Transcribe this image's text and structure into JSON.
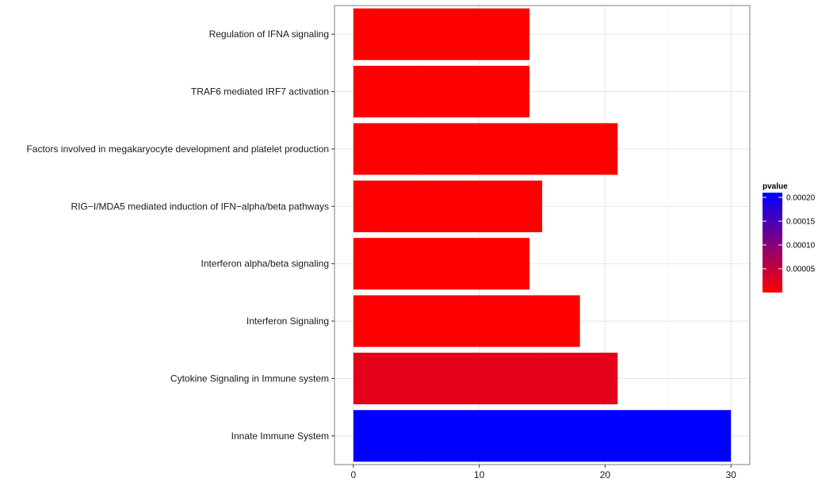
{
  "chart_data": {
    "type": "bar",
    "orientation": "horizontal",
    "categories": [
      "Regulation of IFNA signaling",
      "TRAF6 mediated IRF7 activation",
      "Factors involved in megakaryocyte development and platelet production",
      "RIG−I/MDA5 mediated induction of IFN−alpha/beta pathways",
      "Interferon alpha/beta signaling",
      "Interferon Signaling",
      "Cytokine Signaling in Immune system",
      "Innate Immune System"
    ],
    "values": [
      14,
      14,
      21,
      15,
      14,
      18,
      21,
      30
    ],
    "pvalues": [
      1e-06,
      1e-06,
      1e-06,
      1e-06,
      1e-06,
      1e-06,
      2.2e-05,
      0.00021
    ],
    "xlim": [
      -1.5,
      31.5
    ],
    "xticks": [
      0,
      10,
      20,
      30
    ],
    "xtick_labels": [
      "0",
      "10",
      "20",
      "30"
    ],
    "grid": true,
    "legend": {
      "title": "pvalue",
      "position": "right",
      "range": [
        0,
        0.00021
      ],
      "ticks": [
        5e-05,
        0.0001,
        0.00015,
        0.0002
      ],
      "tick_labels": [
        "0.00005",
        "0.00010",
        "0.00015",
        "0.00020"
      ],
      "color_low": "#ff0000",
      "color_high": "#0000ff"
    }
  }
}
